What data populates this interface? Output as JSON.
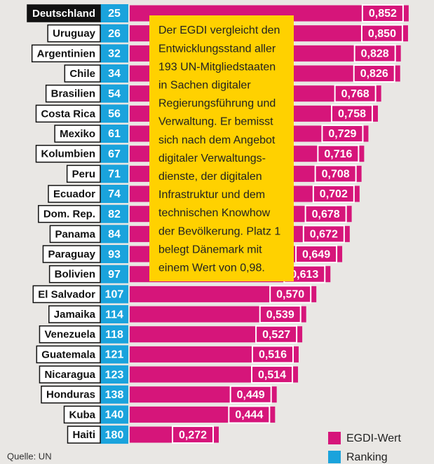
{
  "chart_data": {
    "type": "bar",
    "categories": [
      "Deutschland",
      "Uruguay",
      "Argentinien",
      "Chile",
      "Brasilien",
      "Costa Rica",
      "Mexiko",
      "Kolumbien",
      "Peru",
      "Ecuador",
      "Dom. Rep.",
      "Panama",
      "Paraguay",
      "Bolivien",
      "El Salvador",
      "Jamaika",
      "Venezuela",
      "Guatemala",
      "Nicaragua",
      "Honduras",
      "Kuba",
      "Haiti"
    ],
    "series": [
      {
        "name": "EGDI-Wert",
        "color": "#d6157a",
        "values": [
          0.852,
          0.85,
          0.828,
          0.826,
          0.768,
          0.758,
          0.729,
          0.716,
          0.708,
          0.702,
          0.678,
          0.672,
          0.649,
          0.613,
          0.57,
          0.539,
          0.527,
          0.516,
          0.514,
          0.449,
          0.444,
          0.272
        ],
        "value_labels": [
          "0,852",
          "0,850",
          "0,828",
          "0,826",
          "0,768",
          "0,758",
          "0,729",
          "0,716",
          "0,708",
          "0,702",
          "0,678",
          "0,672",
          "0,649",
          "0,613",
          "0,570",
          "0,539",
          "0,527",
          "0,516",
          "0,514",
          "0,449",
          "0,444",
          "0,272"
        ]
      },
      {
        "name": "Ranking",
        "color": "#1aa3dc",
        "values": [
          25,
          26,
          32,
          34,
          54,
          56,
          61,
          67,
          71,
          74,
          82,
          84,
          93,
          97,
          107,
          114,
          118,
          121,
          123,
          138,
          140,
          180
        ]
      }
    ],
    "highlight": 0,
    "annotation": [
      "Der EGDI vergleicht den",
      "Entwicklungsstand aller",
      "193 UN-Mitgliedstaaten",
      "in Sachen digitaler",
      "Regierungsführung und",
      "Verwaltung. Er bemisst",
      "sich nach dem Angebot",
      "digitaler Verwaltungs-",
      "dienste, der digitalen",
      "Infrastruktur und dem",
      "technischen Knowhow",
      "der Bevölkerung. Platz 1",
      "belegt Dänemark mit",
      "einem Wert von 0,98."
    ],
    "source": "Quelle: UN"
  }
}
